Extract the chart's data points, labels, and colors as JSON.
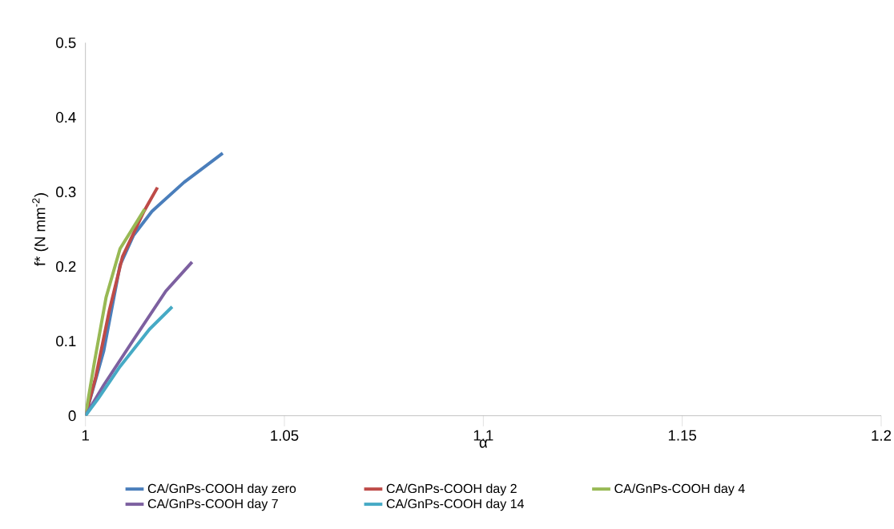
{
  "chart_data": {
    "type": "line",
    "xlabel": "α",
    "ylabel": "f* (N mm$^{-2}$)",
    "xlim": [
      1,
      1.2
    ],
    "xticks": [
      1,
      1.05,
      1.1,
      1.15,
      1.2
    ],
    "ylim": [
      0,
      0.5
    ],
    "yticks": [
      0,
      0.1,
      0.2,
      0.3,
      0.4,
      0.5
    ],
    "grid": false,
    "legend": "bottom",
    "marker": "none",
    "line_style": "solid",
    "series": [
      {
        "name": "CA/GnPs-COOH day zero",
        "color": "#4a7ebb",
        "x": [
          1,
          1.0046,
          1.0087,
          1.0121,
          1.0167,
          1.0248,
          1.0345
        ],
        "values": [
          0,
          0.087,
          0.202,
          0.242,
          0.274,
          0.313,
          0.352
        ]
      },
      {
        "name": "CA/GnPs-COOH day 2",
        "color": "#be4b48",
        "x": [
          1,
          1.0026,
          1.006,
          1.0093,
          1.0147,
          1.0181
        ],
        "values": [
          0,
          0.052,
          0.141,
          0.213,
          0.274,
          0.306
        ]
      },
      {
        "name": "CA/GnPs-COOH day 4",
        "color": "#98b954",
        "x": [
          1,
          1.0022,
          1.0052,
          1.0087,
          1.0149
        ],
        "values": [
          0,
          0.07,
          0.159,
          0.224,
          0.277
        ]
      },
      {
        "name": "CA/GnPs-COOH day 7",
        "color": "#7d60a0",
        "x": [
          1,
          1.0046,
          1.0121,
          1.0202,
          1.0268
        ],
        "values": [
          0,
          0.041,
          0.102,
          0.167,
          0.206
        ]
      },
      {
        "name": "CA/GnPs-COOH day 14",
        "color": "#46aac5",
        "x": [
          1,
          1.0032,
          1.0087,
          1.0161,
          1.0218
        ],
        "values": [
          0,
          0.023,
          0.066,
          0.116,
          0.146
        ]
      }
    ]
  }
}
